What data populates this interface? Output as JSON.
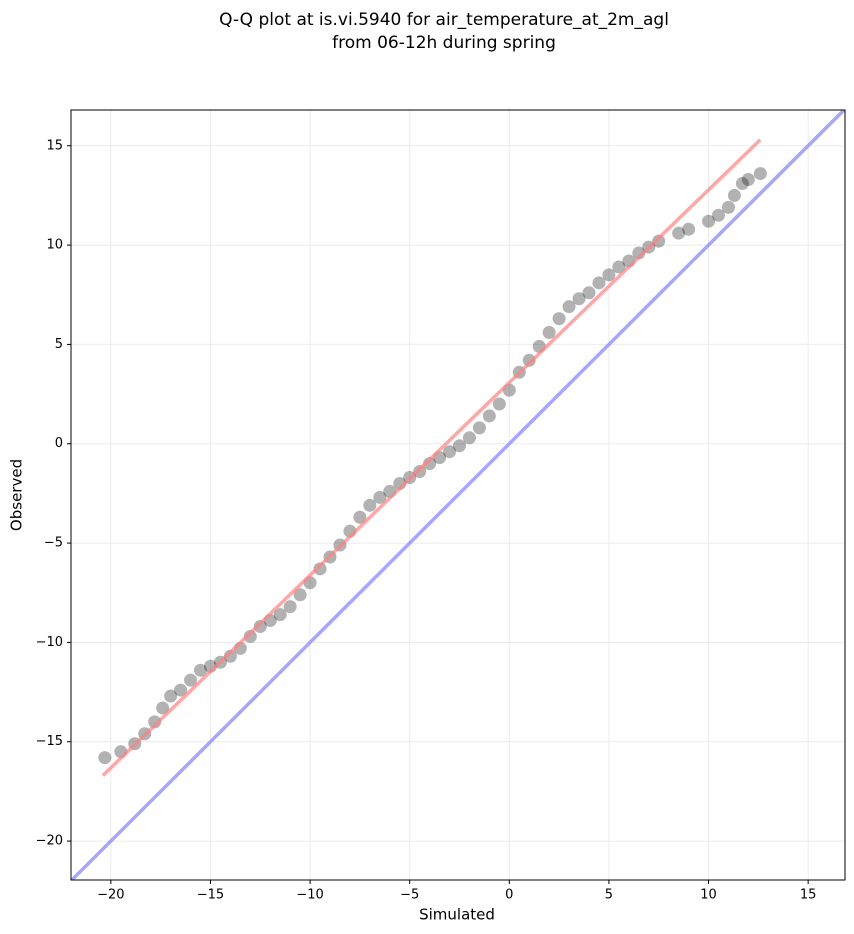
{
  "chart_data": {
    "type": "scatter",
    "title": [
      "Q-Q plot at is.vi.5940 for air_temperature_at_2m_agl",
      "from 06-12h during spring"
    ],
    "xlabel": "Simulated",
    "ylabel": "Observed",
    "xlim": [
      -22,
      16.85
    ],
    "ylim": [
      -21.96,
      16.8
    ],
    "xticks": [
      {
        "value": -20,
        "label": "−20"
      },
      {
        "value": -15,
        "label": "−15"
      },
      {
        "value": -10,
        "label": "−10"
      },
      {
        "value": -5,
        "label": "−5"
      },
      0,
      5,
      10,
      15
    ],
    "yticks": [
      {
        "value": -20,
        "label": "−20"
      },
      {
        "value": -15,
        "label": "−15"
      },
      {
        "value": -10,
        "label": "−10"
      },
      {
        "value": -5,
        "label": "−5"
      },
      0,
      5,
      10,
      15
    ],
    "grid": true,
    "series": [
      {
        "color": "#000000",
        "alpha": 0.3,
        "x": [
          -20.3,
          -19.5,
          -18.8,
          -18.3,
          -17.8,
          -17.4,
          -17.0,
          -16.5,
          -16.0,
          -15.5,
          -15.0,
          -14.5,
          -14.0,
          -13.5,
          -13.0,
          -12.5,
          -12.0,
          -11.5,
          -11.0,
          -10.5,
          -10.0,
          -9.5,
          -9.0,
          -8.5,
          -8.0,
          -7.5,
          -7.0,
          -6.5,
          -6.0,
          -5.5,
          -5.0,
          -4.5,
          -4.0,
          -3.5,
          -3.0,
          -2.5,
          -2.0,
          -1.5,
          -1.0,
          -0.5,
          0.0,
          0.5,
          1.0,
          1.5,
          2.0,
          2.5,
          3.0,
          3.5,
          4.0,
          4.5,
          5.0,
          5.5,
          6.0,
          6.5,
          7.0,
          7.5,
          8.5,
          9.0,
          10.0,
          10.5,
          11.0,
          11.3,
          11.7,
          12.0,
          12.6
        ],
        "values": [
          -15.8,
          -15.5,
          -15.1,
          -14.6,
          -14.0,
          -13.3,
          -12.7,
          -12.4,
          -11.9,
          -11.4,
          -11.2,
          -11.0,
          -10.7,
          -10.3,
          -9.7,
          -9.2,
          -8.9,
          -8.6,
          -8.2,
          -7.6,
          -7.0,
          -6.3,
          -5.7,
          -5.1,
          -4.4,
          -3.7,
          -3.1,
          -2.7,
          -2.4,
          -2.0,
          -1.7,
          -1.4,
          -1.0,
          -0.7,
          -0.4,
          -0.1,
          0.3,
          0.8,
          1.4,
          2.0,
          2.7,
          3.6,
          4.2,
          4.9,
          5.6,
          6.3,
          6.9,
          7.3,
          7.6,
          8.1,
          8.5,
          8.9,
          9.2,
          9.6,
          9.9,
          10.2,
          10.6,
          10.8,
          11.2,
          11.5,
          11.9,
          12.5,
          13.1,
          13.3,
          13.6
        ]
      }
    ],
    "lines": [
      {
        "color": "#ff8080",
        "x": [
          -20.4,
          12.6
        ],
        "y": [
          -16.7,
          15.3
        ]
      },
      {
        "color": "#8080ff",
        "x": [
          -22,
          16.85
        ],
        "y": [
          -22,
          16.85
        ]
      }
    ]
  }
}
